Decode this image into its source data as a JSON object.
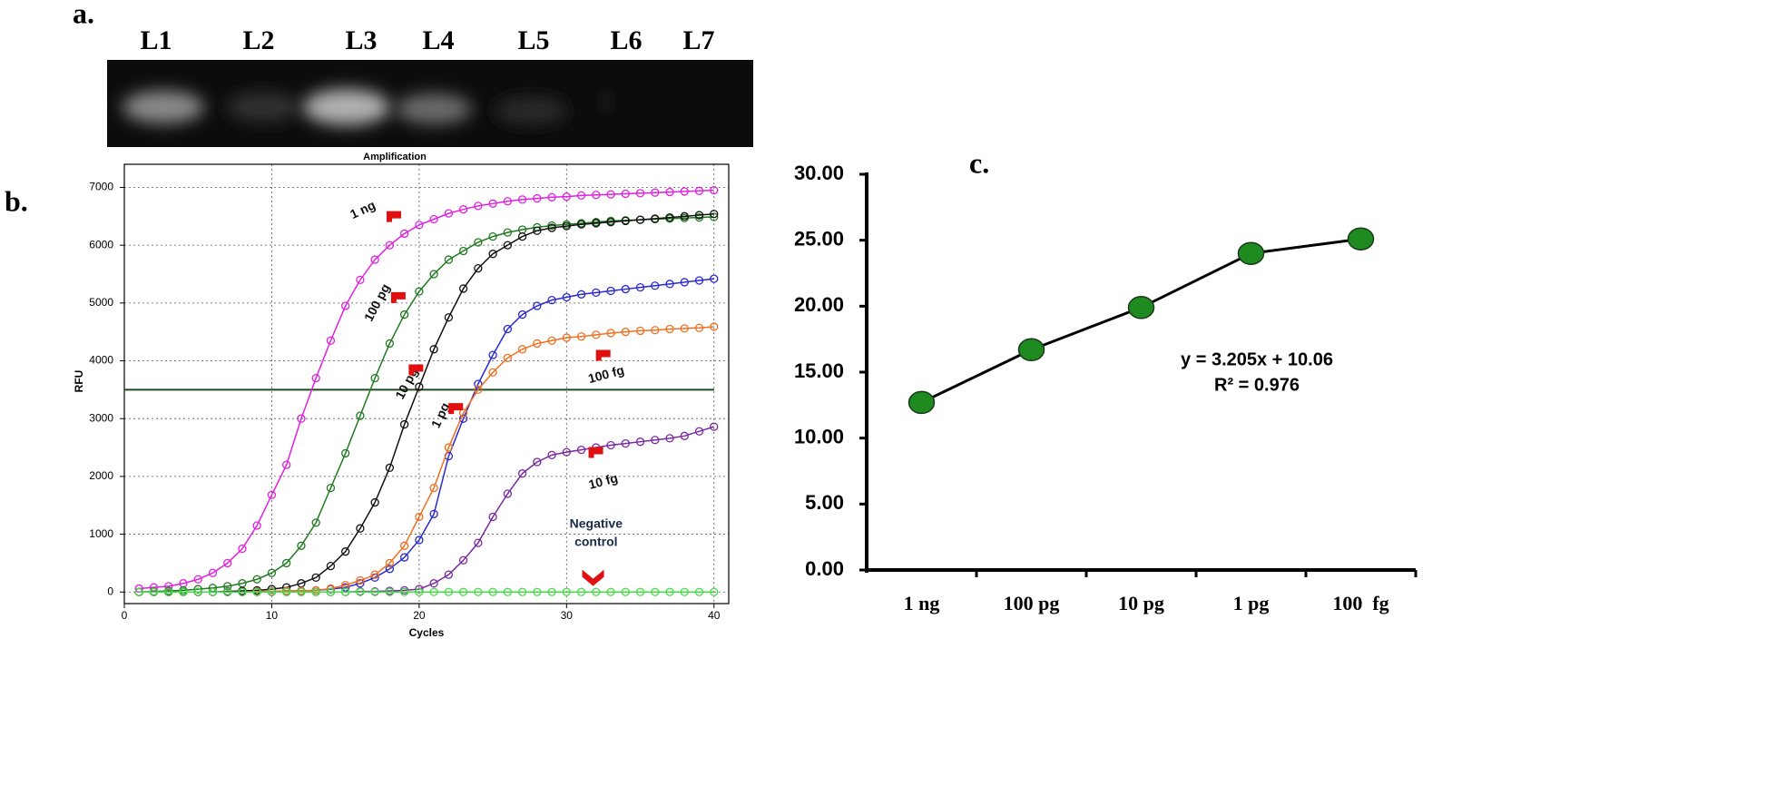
{
  "gel": {
    "label": "a.",
    "lanes": [
      "L1",
      "L2",
      "L3",
      "L4",
      "L5",
      "L6",
      "L7"
    ]
  },
  "chart_data": [
    {
      "type": "line",
      "panel_label": "b.",
      "title": "Amplification",
      "xlabel": "Cycles",
      "ylabel": "RFU",
      "x": [
        1,
        2,
        3,
        4,
        5,
        6,
        7,
        8,
        9,
        10,
        11,
        12,
        13,
        14,
        15,
        16,
        17,
        18,
        19,
        20,
        21,
        22,
        23,
        24,
        25,
        26,
        27,
        28,
        29,
        30,
        31,
        32,
        33,
        34,
        35,
        36,
        37,
        38,
        39,
        40
      ],
      "series": [
        {
          "name": "1 ng",
          "color": "#e020e0",
          "values": [
            60,
            80,
            100,
            150,
            220,
            330,
            500,
            750,
            1150,
            1680,
            2200,
            3000,
            3700,
            4350,
            4950,
            5400,
            5750,
            6000,
            6200,
            6350,
            6450,
            6550,
            6620,
            6680,
            6720,
            6760,
            6790,
            6810,
            6830,
            6840,
            6860,
            6870,
            6880,
            6890,
            6900,
            6910,
            6920,
            6930,
            6940,
            6950
          ]
        },
        {
          "name": "100 pg",
          "color": "#1f7a1f",
          "values": [
            0,
            10,
            20,
            30,
            50,
            70,
            100,
            150,
            220,
            330,
            500,
            800,
            1200,
            1800,
            2400,
            3050,
            3700,
            4300,
            4800,
            5200,
            5500,
            5750,
            5900,
            6050,
            6150,
            6220,
            6270,
            6310,
            6340,
            6360,
            6380,
            6400,
            6420,
            6430,
            6440,
            6450,
            6460,
            6470,
            6480,
            6490
          ]
        },
        {
          "name": "10 pg",
          "color": "#111111",
          "values": [
            0,
            0,
            0,
            0,
            0,
            0,
            10,
            20,
            30,
            50,
            80,
            150,
            250,
            450,
            700,
            1100,
            1550,
            2150,
            2900,
            3550,
            4200,
            4750,
            5250,
            5600,
            5850,
            6000,
            6150,
            6250,
            6300,
            6330,
            6360,
            6380,
            6400,
            6420,
            6440,
            6460,
            6480,
            6500,
            6520,
            6540
          ]
        },
        {
          "name": "1 pg",
          "color": "#2a2ad0",
          "values": [
            0,
            0,
            0,
            0,
            0,
            0,
            0,
            0,
            10,
            10,
            20,
            20,
            30,
            50,
            80,
            150,
            250,
            400,
            600,
            900,
            1350,
            2350,
            3000,
            3600,
            4100,
            4550,
            4800,
            4950,
            5050,
            5100,
            5150,
            5180,
            5210,
            5240,
            5270,
            5300,
            5330,
            5360,
            5390,
            5420
          ]
        },
        {
          "name": "100 fg",
          "color": "#f07020",
          "values": [
            0,
            0,
            0,
            0,
            0,
            0,
            0,
            0,
            10,
            10,
            20,
            20,
            30,
            60,
            120,
            200,
            300,
            500,
            800,
            1300,
            1800,
            2500,
            3100,
            3500,
            3800,
            4050,
            4200,
            4300,
            4350,
            4400,
            4420,
            4450,
            4480,
            4500,
            4520,
            4530,
            4550,
            4560,
            4570,
            4590
          ]
        },
        {
          "name": "10 fg",
          "color": "#7a2aa0",
          "values": [
            0,
            0,
            0,
            0,
            0,
            0,
            0,
            0,
            0,
            0,
            0,
            0,
            0,
            0,
            0,
            10,
            10,
            20,
            30,
            50,
            150,
            300,
            550,
            850,
            1300,
            1700,
            2050,
            2250,
            2370,
            2420,
            2460,
            2500,
            2540,
            2570,
            2600,
            2630,
            2660,
            2700,
            2780,
            2860
          ]
        },
        {
          "name": "Negative control",
          "color": "#44dd44",
          "values": [
            0,
            0,
            0,
            0,
            0,
            0,
            0,
            0,
            0,
            0,
            0,
            0,
            0,
            0,
            0,
            0,
            0,
            0,
            0,
            0,
            0,
            0,
            0,
            0,
            0,
            0,
            0,
            0,
            0,
            0,
            0,
            0,
            0,
            0,
            0,
            0,
            0,
            0,
            0,
            0
          ]
        }
      ],
      "threshold": 3500,
      "threshold_color": "#1f4a1f",
      "xlim": [
        0,
        41
      ],
      "xticks": [
        0,
        10,
        20,
        30,
        40
      ],
      "ylim": [
        -200,
        7400
      ],
      "yticks": [
        0,
        1000,
        2000,
        3000,
        4000,
        5000,
        6000,
        7000
      ],
      "grid": true
    },
    {
      "type": "line",
      "panel_label": "c.",
      "categories": [
        "1 ng",
        "100 pg",
        "10 pg",
        "1 pg",
        "100  fg"
      ],
      "values": [
        12.7,
        16.7,
        19.9,
        24.0,
        25.1
      ],
      "color": "#1f8a1f",
      "equation": "y = 3.205x + 10.06",
      "r_squared": "R² = 0.976",
      "ylim": [
        0,
        30
      ],
      "yticks": [
        {
          "value": 0,
          "label": "0.00"
        },
        {
          "value": 5,
          "label": "5.00"
        },
        {
          "value": 10,
          "label": "10.00"
        },
        {
          "value": 15,
          "label": "15.00"
        },
        {
          "value": 20,
          "label": "20.00"
        },
        {
          "value": 25,
          "label": "25.00"
        },
        {
          "value": 30,
          "label": "30.00"
        }
      ]
    }
  ]
}
